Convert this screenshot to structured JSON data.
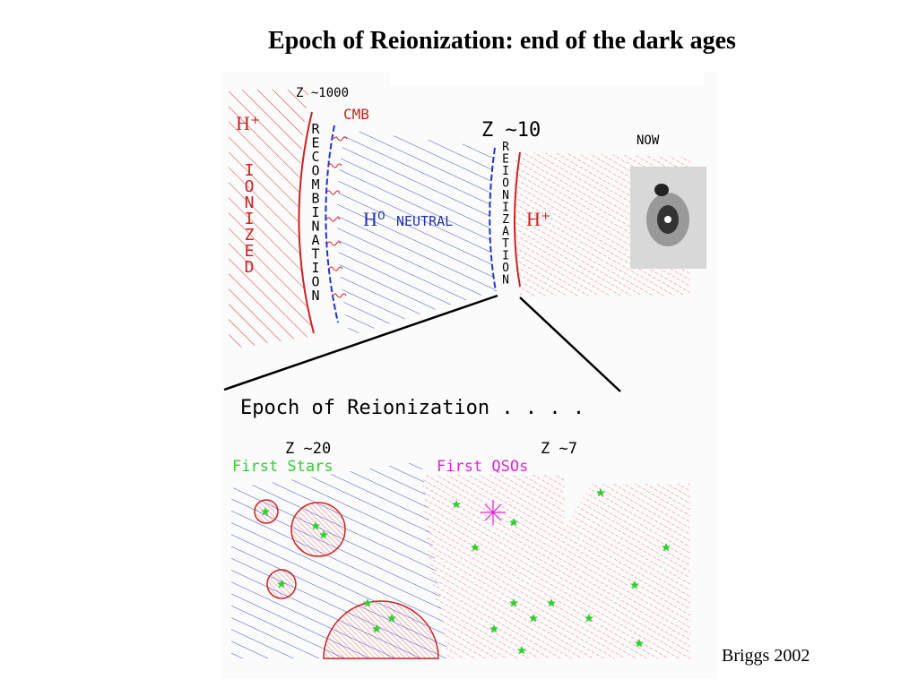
{
  "title": "Epoch of Reionization: end of the dark ages",
  "top_panel": {
    "z_recombination": "Z ~1000",
    "cmb": "CMB",
    "ionized_ion": "H⁺",
    "ionized": "IONIZED",
    "recombination": "RECOMBINATION",
    "neutral_symbol": "H⁰",
    "neutral": "NEUTRAL",
    "z_reionization": "Z ~10",
    "reionization": "REIONIZATION",
    "reionized_ion": "H⁺",
    "now": "NOW"
  },
  "bottom_panel": {
    "heading": "Epoch of Reionization . . . .",
    "z_stars": "Z ~20",
    "first_stars": "First Stars",
    "z_qsos": "Z ~7",
    "first_qsos": "First QSOs"
  },
  "credit": "Briggs 2002"
}
